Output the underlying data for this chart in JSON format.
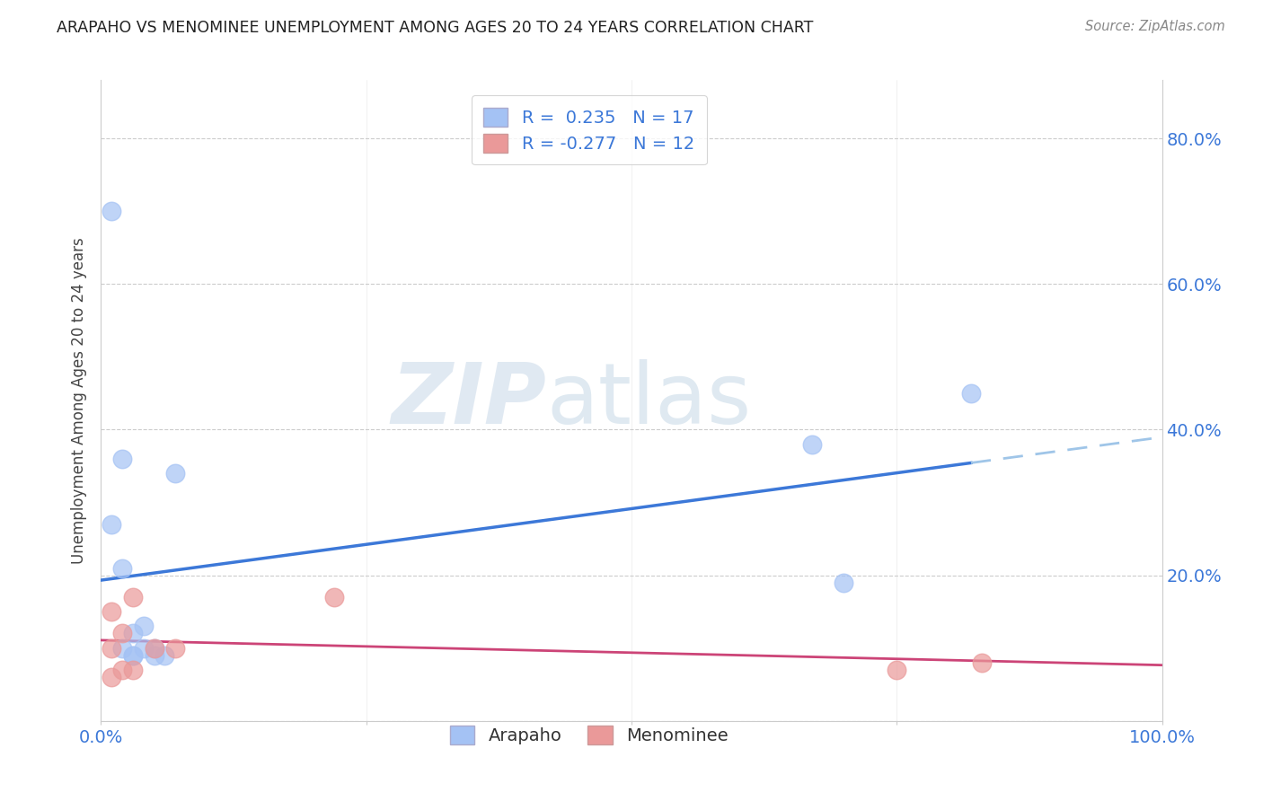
{
  "title": "ARAPAHO VS MENOMINEE UNEMPLOYMENT AMONG AGES 20 TO 24 YEARS CORRELATION CHART",
  "source": "Source: ZipAtlas.com",
  "ylabel": "Unemployment Among Ages 20 to 24 years",
  "xlim": [
    0.0,
    1.0
  ],
  "ylim": [
    0.0,
    0.88
  ],
  "x_ticks": [
    0.0,
    0.25,
    0.5,
    0.75,
    1.0
  ],
  "x_tick_labels": [
    "0.0%",
    "",
    "",
    "",
    "100.0%"
  ],
  "y_ticks": [
    0.0,
    0.2,
    0.4,
    0.6,
    0.8
  ],
  "y_tick_labels_right": [
    "",
    "20.0%",
    "40.0%",
    "60.0%",
    "80.0%"
  ],
  "arapaho_color": "#a4c2f4",
  "arapaho_edge_color": "#6d9eeb",
  "menominee_color": "#ea9999",
  "menominee_edge_color": "#e06666",
  "arapaho_line_color": "#3c78d8",
  "arapaho_line_dashed_color": "#9fc5e8",
  "menominee_line_color": "#cc4477",
  "legend_arapaho_label": "R =  0.235   N = 17",
  "legend_menominee_label": "R = -0.277   N = 12",
  "legend_bottom_arapaho": "Arapaho",
  "legend_bottom_menominee": "Menominee",
  "arapaho_x": [
    0.01,
    0.01,
    0.02,
    0.02,
    0.02,
    0.03,
    0.03,
    0.03,
    0.04,
    0.04,
    0.05,
    0.05,
    0.06,
    0.07,
    0.67,
    0.7,
    0.82
  ],
  "arapaho_y": [
    0.7,
    0.27,
    0.21,
    0.36,
    0.1,
    0.09,
    0.09,
    0.12,
    0.13,
    0.1,
    0.1,
    0.09,
    0.09,
    0.34,
    0.38,
    0.19,
    0.45
  ],
  "menominee_x": [
    0.01,
    0.01,
    0.01,
    0.02,
    0.02,
    0.03,
    0.03,
    0.05,
    0.07,
    0.22,
    0.75,
    0.83
  ],
  "menominee_y": [
    0.15,
    0.1,
    0.06,
    0.12,
    0.07,
    0.07,
    0.17,
    0.1,
    0.1,
    0.17,
    0.07,
    0.08
  ],
  "watermark_zip": "ZIP",
  "watermark_atlas": "atlas",
  "background_color": "#ffffff",
  "grid_color": "#cccccc",
  "tick_label_color": "#3c78d8",
  "spine_color": "#cccccc"
}
